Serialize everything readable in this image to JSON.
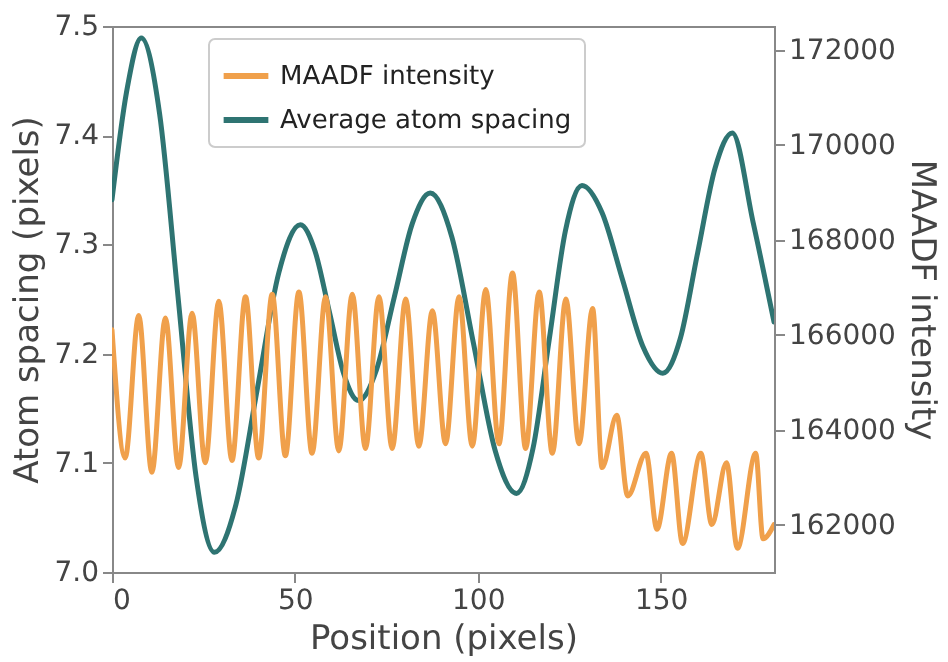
{
  "chart_data": {
    "type": "line",
    "xlabel": "Position (pixels)",
    "ylabel": "Atom spacing (pixels)",
    "y2label": "MAADF intensity",
    "xlim": [
      0,
      181
    ],
    "xticks": [
      0,
      50,
      100,
      150
    ],
    "ylim": [
      7.0,
      7.5
    ],
    "yticks": [
      {
        "value": 7.0,
        "label": "7.0"
      },
      7.1,
      7.2,
      7.3,
      7.4,
      7.5
    ],
    "y2lim": [
      161000,
      172500
    ],
    "y2ticks": [
      162000,
      164000,
      166000,
      168000,
      170000,
      172000
    ],
    "grid": false,
    "legend": "top",
    "marker": "none",
    "line_style": "solid",
    "series": [
      {
        "name": "MAADF intensity",
        "color": "#f0a04b",
        "axis": "y2",
        "x": [
          0,
          3.6,
          7.3,
          10.9,
          14.6,
          18.2,
          21.9,
          25.5,
          29.2,
          32.8,
          36.5,
          40.1,
          43.8,
          47.4,
          51.1,
          54.7,
          58.4,
          62,
          65.7,
          69.3,
          73,
          76.6,
          80.3,
          83.9,
          87.6,
          91.2,
          94.9,
          98.5,
          102.2,
          105.8,
          109.5,
          113.1,
          116.8,
          120.4,
          124.1,
          127.7,
          131.4,
          134,
          138,
          141,
          146,
          149,
          153,
          156,
          161,
          164,
          168,
          171,
          176,
          178,
          181
        ],
        "values": [
          166100,
          163400,
          166400,
          163100,
          166350,
          163200,
          166450,
          163300,
          166700,
          163350,
          166800,
          163400,
          166850,
          163450,
          166900,
          163500,
          166800,
          163550,
          166850,
          163600,
          166800,
          163600,
          166750,
          163650,
          166500,
          163700,
          166800,
          163650,
          166950,
          163700,
          167300,
          163600,
          166900,
          163500,
          166750,
          163700,
          166550,
          163200,
          164300,
          162600,
          163500,
          161900,
          163500,
          161600,
          163500,
          162000,
          163300,
          161500,
          163500,
          161700,
          162000
        ]
      },
      {
        "name": "Average atom spacing",
        "color": "#2e7472",
        "x": [
          0,
          4,
          8,
          13,
          18,
          23,
          28,
          33.9,
          39.75,
          45.6,
          51.5,
          55.5,
          59.45,
          63.4,
          67.4,
          72.3,
          77.2,
          82.1,
          87,
          92.9,
          98.8,
          104.7,
          110.6,
          115.1,
          119.55,
          124,
          128.5,
          134,
          139.55,
          145.1,
          150.6,
          155.4,
          160.1,
          164.9,
          169.6,
          175.3,
          181
        ],
        "values": [
          7.341,
          7.44,
          7.489,
          7.42,
          7.254,
          7.087,
          7.018,
          7.062,
          7.168,
          7.274,
          7.318,
          7.294,
          7.238,
          7.181,
          7.157,
          7.185,
          7.252,
          7.319,
          7.347,
          7.307,
          7.21,
          7.112,
          7.072,
          7.113,
          7.213,
          7.313,
          7.354,
          7.329,
          7.268,
          7.207,
          7.182,
          7.214,
          7.292,
          7.37,
          7.402,
          7.32,
          7.229
        ]
      }
    ]
  }
}
